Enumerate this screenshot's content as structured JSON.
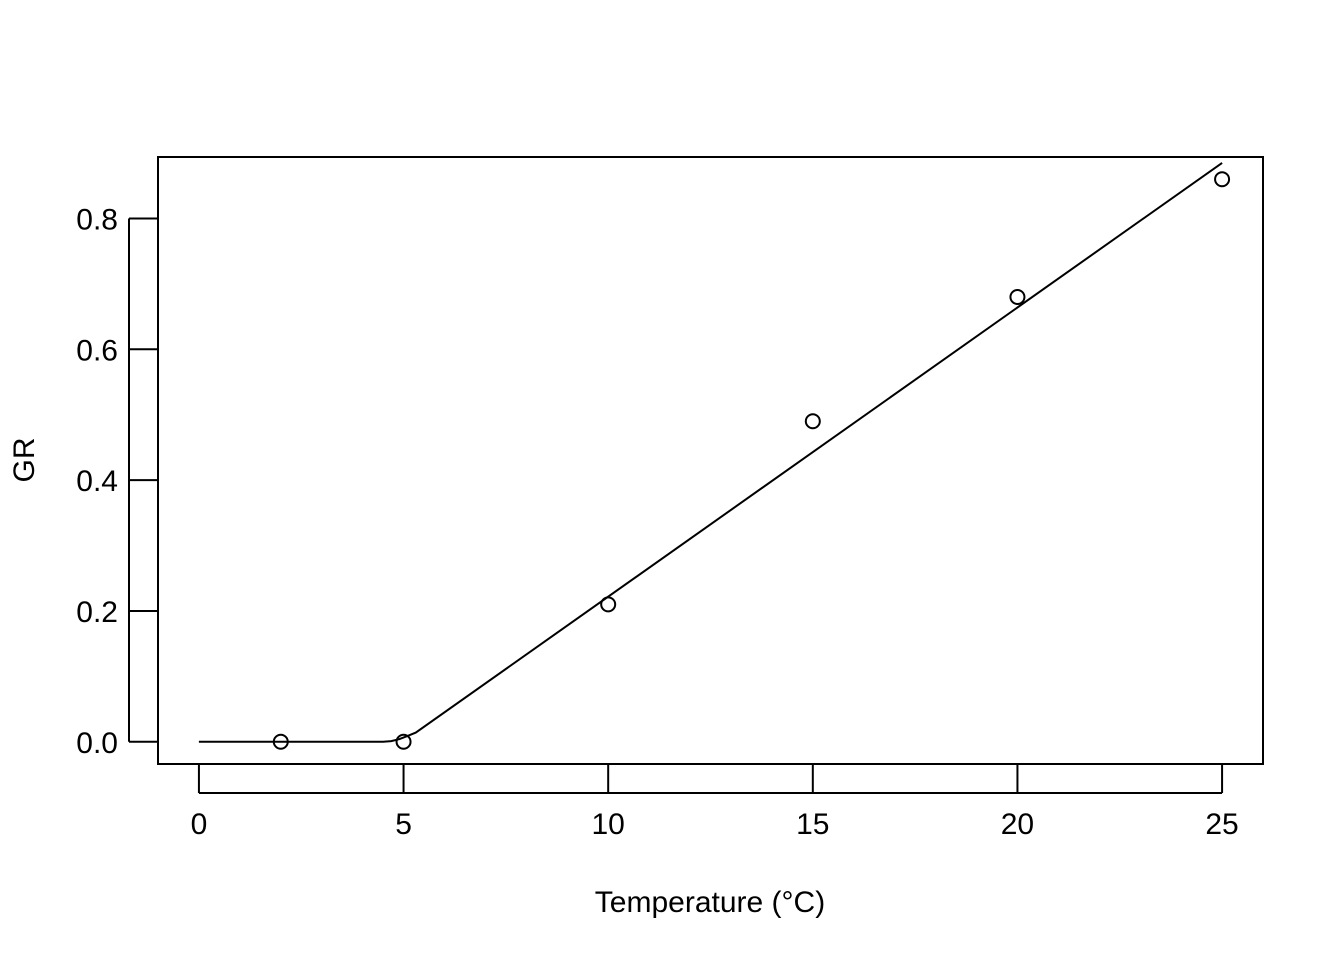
{
  "chart_data": {
    "type": "scatter",
    "title": "",
    "xlabel": "Temperature (°C)",
    "ylabel": "GR",
    "xlim": [
      -1.0,
      26.0
    ],
    "ylim": [
      -0.034,
      0.894
    ],
    "x_ticks": [
      0,
      5,
      10,
      15,
      20,
      25
    ],
    "x_tick_labels": [
      "0",
      "5",
      "10",
      "15",
      "20",
      "25"
    ],
    "y_ticks": [
      0.0,
      0.2,
      0.4,
      0.6,
      0.8
    ],
    "y_tick_labels": [
      "0.0",
      "0.2",
      "0.4",
      "0.6",
      "0.8"
    ],
    "grid": false,
    "legend": "none",
    "series": [
      {
        "type": "scatter",
        "marker": "open-circle",
        "x": [
          2,
          5,
          10,
          15,
          20,
          25
        ],
        "y": [
          0.0,
          0.0,
          0.21,
          0.49,
          0.68,
          0.86
        ]
      },
      {
        "type": "line",
        "x": [
          0,
          4.5,
          4.7,
          4.9,
          5.1,
          5.3,
          25
        ],
        "y": [
          0.0,
          0.0,
          0.001,
          0.004,
          0.009,
          0.014,
          0.885
        ]
      }
    ]
  }
}
